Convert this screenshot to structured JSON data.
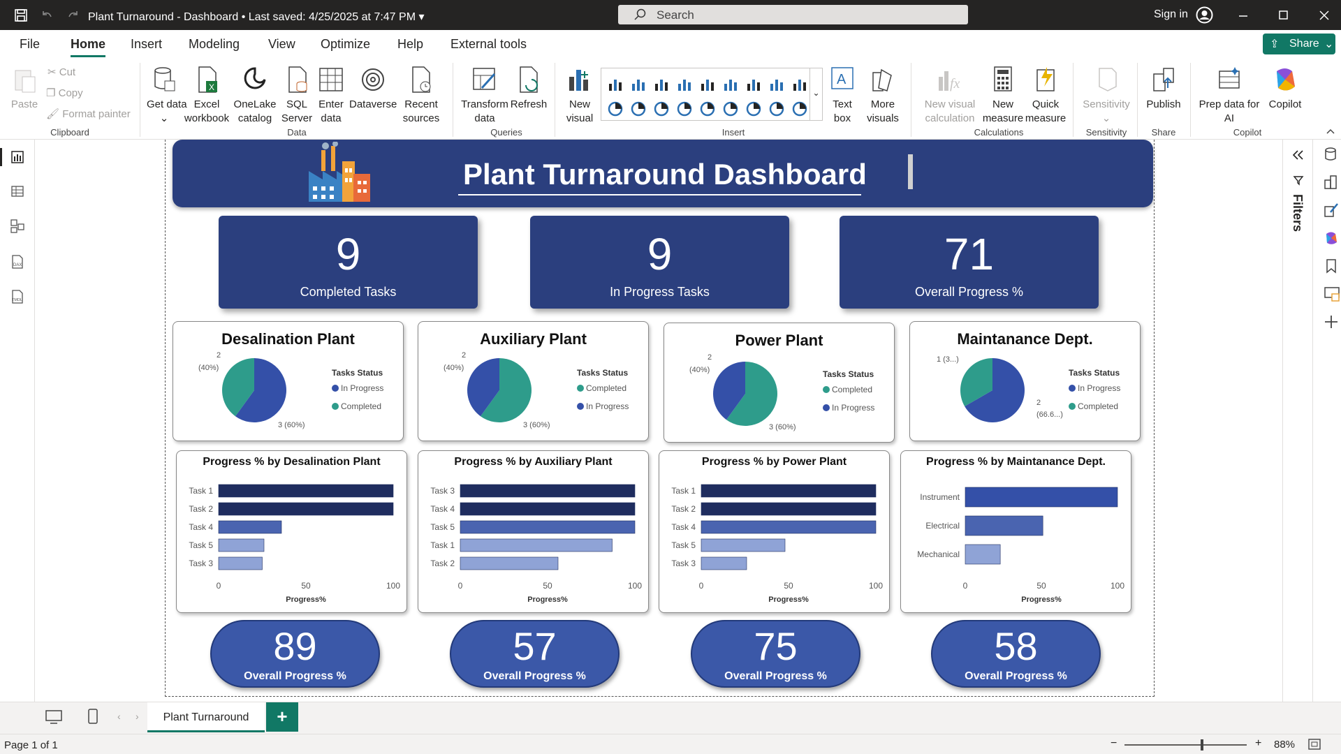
{
  "titlebar": {
    "title": "Plant Turnaround - Dashboard",
    "saved": "Last saved: 4/25/2025 at 7:47 PM",
    "search_placeholder": "Search",
    "signin": "Sign in"
  },
  "menu": {
    "tabs": [
      "File",
      "Home",
      "Insert",
      "Modeling",
      "View",
      "Optimize",
      "Help",
      "External tools"
    ],
    "active": "Home",
    "share": "Share"
  },
  "ribbon": {
    "clipboard": {
      "paste": "Paste",
      "cut": "Cut",
      "copy": "Copy",
      "format_painter": "Format painter",
      "group": "Clipboard"
    },
    "data": {
      "get_data": "Get data",
      "excel": "Excel workbook",
      "onelake": "OneLake catalog",
      "sql": "SQL Server",
      "enter": "Enter data",
      "dataverse": "Dataverse",
      "recent": "Recent sources",
      "group": "Data"
    },
    "queries": {
      "transform": "Transform data",
      "refresh": "Refresh",
      "group": "Queries"
    },
    "insert": {
      "new_visual": "New visual",
      "text_box": "Text box",
      "more_visuals": "More visuals",
      "group": "Insert"
    },
    "calculations": {
      "new_visual_calc": "New visual calculation",
      "new_measure": "New measure",
      "quick_measure": "Quick measure",
      "group": "Calculations"
    },
    "sensitivity": {
      "label": "Sensitivity",
      "group": "Sensitivity"
    },
    "share": {
      "publish": "Publish",
      "group": "Share"
    },
    "copilot": {
      "prep": "Prep data for AI",
      "copilot": "Copilot",
      "group": "Copilot"
    }
  },
  "filters_label": "Filters",
  "dashboard": {
    "title": "Plant Turnaround Dashboard",
    "kpis": [
      {
        "value": "9",
        "label": "Completed Tasks"
      },
      {
        "value": "9",
        "label": "In Progress Tasks"
      },
      {
        "value": "71",
        "label": "Overall Progress %"
      }
    ],
    "pies": [
      {
        "title": "Desalination Plant",
        "legend_title": "Tasks Status",
        "legend": [
          "In Progress",
          "Completed"
        ],
        "label_top_a": "2",
        "label_top_b": "(40%)",
        "label_bottom": "3 (60%)"
      },
      {
        "title": "Auxiliary Plant",
        "legend_title": "Tasks Status",
        "legend": [
          "Completed",
          "In Progress"
        ],
        "label_top_a": "2",
        "label_top_b": "(40%)",
        "label_bottom": "3 (60%)"
      },
      {
        "title": "Power Plant",
        "legend_title": "Tasks Status",
        "legend": [
          "Completed",
          "In Progress"
        ],
        "label_top_a": "2",
        "label_top_b": "(40%)",
        "label_bottom": "3 (60%)"
      },
      {
        "title": "Maintanance Dept.",
        "legend_title": "Tasks Status",
        "legend": [
          "In Progress",
          "Completed"
        ],
        "label_top_a": "1 (3...)",
        "label_top_b": "",
        "label_bottom": "2",
        "label_bottom_b": "(66.6...)"
      }
    ],
    "pills": [
      {
        "value": "89",
        "label": "Overall Progress %"
      },
      {
        "value": "57",
        "label": "Overall Progress %"
      },
      {
        "value": "75",
        "label": "Overall Progress %"
      },
      {
        "value": "58",
        "label": "Overall Progress %"
      }
    ]
  },
  "colors": {
    "navy": "#2b3f7e",
    "blue": "#3450a8",
    "teal": "#2e9c8b",
    "bar_dark": "#1f2d5f",
    "bar_mid": "#4a64b0",
    "bar_light": "#8fa3d6"
  },
  "chart_data": [
    {
      "type": "pie",
      "title": "Desalination Plant",
      "slices": [
        {
          "name": "In Progress",
          "value": 3,
          "pct": 60
        },
        {
          "name": "Completed",
          "value": 2,
          "pct": 40
        }
      ]
    },
    {
      "type": "pie",
      "title": "Auxiliary Plant",
      "slices": [
        {
          "name": "Completed",
          "value": 3,
          "pct": 60
        },
        {
          "name": "In Progress",
          "value": 2,
          "pct": 40
        }
      ]
    },
    {
      "type": "pie",
      "title": "Power Plant",
      "slices": [
        {
          "name": "Completed",
          "value": 3,
          "pct": 60
        },
        {
          "name": "In Progress",
          "value": 2,
          "pct": 40
        }
      ]
    },
    {
      "type": "pie",
      "title": "Maintanance Dept.",
      "slices": [
        {
          "name": "In Progress",
          "value": 2,
          "pct": 66.67
        },
        {
          "name": "Completed",
          "value": 1,
          "pct": 33.33
        }
      ]
    },
    {
      "type": "bar",
      "orientation": "horizontal",
      "title": "Progress % by Desalination Plant",
      "categories": [
        "Task 1",
        "Task 2",
        "Task 4",
        "Task 5",
        "Task 3"
      ],
      "values": [
        100,
        100,
        36,
        26,
        25
      ],
      "xlabel": "Progress%",
      "xlim": [
        0,
        100
      ],
      "ticks": [
        "0",
        "50",
        "100"
      ]
    },
    {
      "type": "bar",
      "orientation": "horizontal",
      "title": "Progress % by Auxiliary Plant",
      "categories": [
        "Task 3",
        "Task 4",
        "Task 5",
        "Task 1",
        "Task 2"
      ],
      "values": [
        100,
        100,
        100,
        87,
        56
      ],
      "xlabel": "Progress%",
      "xlim": [
        0,
        100
      ],
      "ticks": [
        "0",
        "50",
        "100"
      ]
    },
    {
      "type": "bar",
      "orientation": "horizontal",
      "title": "Progress % by Power Plant",
      "categories": [
        "Task 1",
        "Task 2",
        "Task 4",
        "Task 5",
        "Task 3"
      ],
      "values": [
        100,
        100,
        100,
        48,
        26
      ],
      "xlabel": "Progress%",
      "xlim": [
        0,
        100
      ],
      "ticks": [
        "0",
        "50",
        "100"
      ]
    },
    {
      "type": "bar",
      "orientation": "horizontal",
      "title": "Progress % by Maintanance Dept.",
      "categories": [
        "Instrument",
        "Electrical",
        "Mechanical"
      ],
      "values": [
        100,
        51,
        23
      ],
      "xlabel": "Progress%",
      "xlim": [
        0,
        100
      ],
      "ticks": [
        "0",
        "50",
        "100"
      ]
    }
  ],
  "tabs": {
    "page": "Plant Turnaround",
    "add": "+"
  },
  "status": {
    "page": "Page 1 of 1",
    "zoom": "88%"
  }
}
